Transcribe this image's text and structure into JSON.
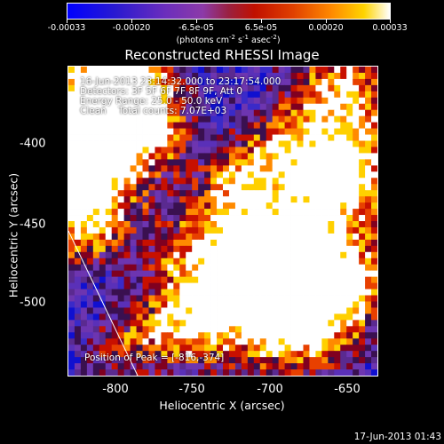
{
  "colorbar": {
    "labels": [
      "-0.00033",
      "-0.00020",
      "-6.5e-05",
      "6.5e-05",
      "0.00020",
      "0.00033"
    ],
    "unit_main": "(photons cm",
    "unit_exp1": "-2",
    "unit_mid1": " s",
    "unit_exp2": "-1",
    "unit_mid2": " asec",
    "unit_exp3": "-2",
    "unit_end": ")"
  },
  "title": "Reconstructed RHESSI Image",
  "info": {
    "time": "16-Jun-2013 23:14:32.000 to 23:17:54.000",
    "detectors": "Detectors: 3F 5F 6F 7F 8F 9F, Att 0",
    "energy": "Energy Range: 25.0 - 50.0 keV",
    "clean": "Clean    Total counts: 7.07E+03"
  },
  "peak": "Position of Peak = [-816,-374]",
  "axes": {
    "xlabel": "Heliocentric X (arcsec)",
    "ylabel": "Heliocentric Y (arcsec)",
    "xticks": [
      "-800",
      "-750",
      "-700",
      "-650"
    ],
    "yticks": [
      "-400",
      "-450",
      "-500"
    ]
  },
  "timestamp": "17-Jun-2013 01:43"
}
